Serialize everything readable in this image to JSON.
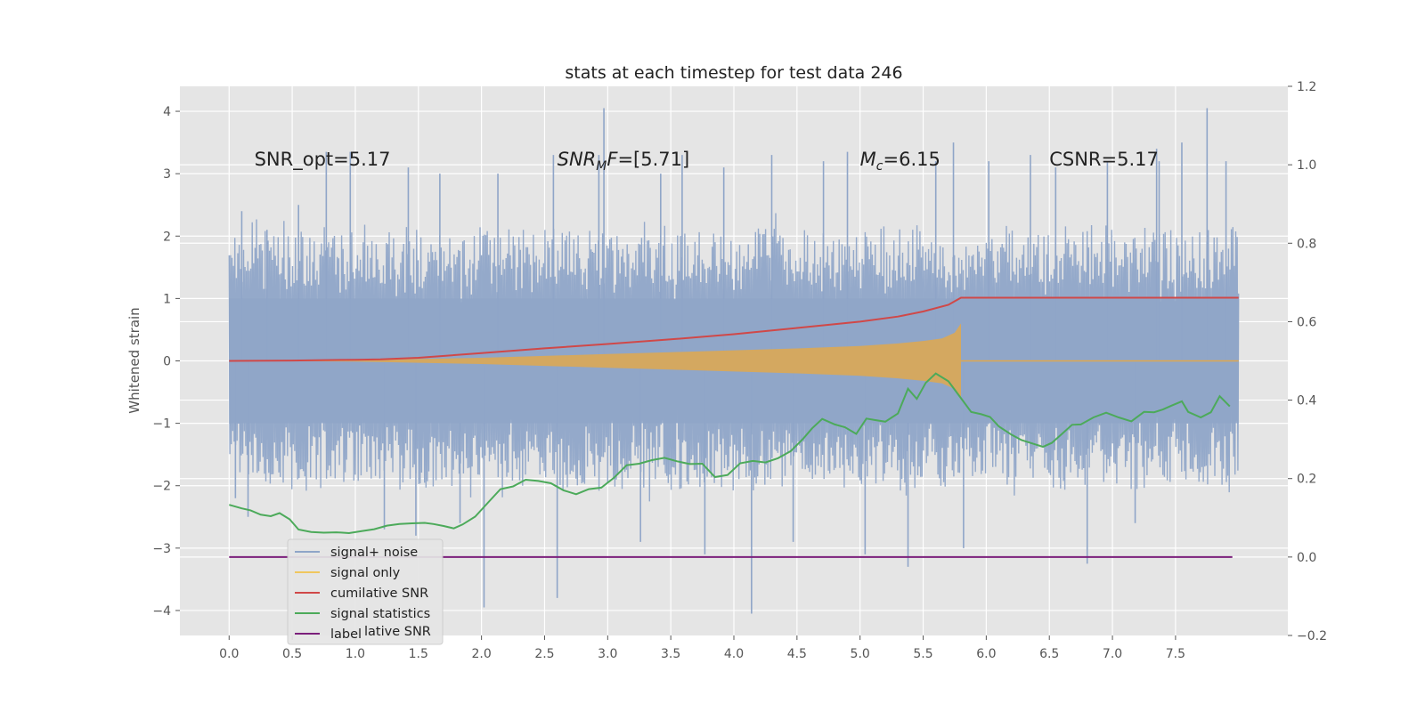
{
  "chart_data": {
    "type": "line",
    "title": "stats at each timestep for test data 246",
    "ylabel": "Whitened strain",
    "xlabel": "",
    "xlim": [
      -0.39,
      8.39
    ],
    "ylim": [
      -4.4,
      4.4
    ],
    "y2lim": [
      -0.2,
      1.2
    ],
    "grid": true,
    "xticks": [
      0.0,
      0.5,
      1.0,
      1.5,
      2.0,
      2.5,
      3.0,
      3.5,
      4.0,
      4.5,
      5.0,
      5.5,
      6.0,
      6.5,
      7.0,
      7.5
    ],
    "xtick_labels": [
      "0.0",
      "0.5",
      "1.0",
      "1.5",
      "2.0",
      "2.5",
      "3.0",
      "3.5",
      "4.0",
      "4.5",
      "5.0",
      "5.5",
      "6.0",
      "6.5",
      "7.0",
      "7.5"
    ],
    "yticks": [
      4,
      3,
      2,
      1,
      0,
      -1,
      -2,
      -3,
      -4
    ],
    "ytick_labels": [
      "4",
      "3",
      "2",
      "1",
      "0",
      "−1",
      "−2",
      "−3",
      "−4"
    ],
    "y2ticks": [
      1.2,
      1.0,
      0.8,
      0.6,
      0.4,
      0.2,
      0.0,
      -0.2
    ],
    "y2tick_labels": [
      "1.2",
      "1.0",
      "0.8",
      "0.6",
      "0.4",
      "0.2",
      "0.0",
      "−0.2"
    ],
    "annotations": [
      {
        "x": 0.2,
        "y": 3.2,
        "text": "SNR_opt=5.17",
        "italic": false
      },
      {
        "x": 2.6,
        "y": 3.2,
        "text": "SNR_MF=[5.71]",
        "italic": true
      },
      {
        "x": 5.0,
        "y": 3.2,
        "text": "M_c=6.15",
        "italic": true
      },
      {
        "x": 6.5,
        "y": 3.2,
        "text": "CSNR=5.17",
        "italic": false
      }
    ],
    "legend": {
      "placement": "lower-left",
      "entries": [
        {
          "label": "signal+ noise",
          "color": "#8fa5c8"
        },
        {
          "label": "signal only",
          "color": "#f0c75e"
        },
        {
          "label": "cumilative SNR",
          "color": "#d04848"
        },
        {
          "label": "signal statistics",
          "color": "#4caa5a"
        },
        {
          "label": "label",
          "color": "#7b1f7b"
        }
      ],
      "ghost_text": "lative SNR"
    },
    "series": [
      {
        "name": "signal+ noise",
        "axis": "left",
        "color": "#8fa5c8",
        "style": "dense-noise",
        "x_range": [
          0.0,
          8.0
        ],
        "typical_band": [
          -1.9,
          2.2
        ],
        "peaks_x": [
          0.05,
          0.1,
          0.15,
          0.3,
          0.55,
          0.77,
          0.96,
          1.23,
          1.42,
          1.48,
          1.67,
          1.83,
          2.02,
          2.13,
          2.57,
          2.6,
          2.93,
          2.97,
          3.26,
          3.42,
          3.59,
          3.77,
          3.92,
          4.14,
          4.3,
          4.47,
          4.71,
          4.9,
          5.04,
          5.38,
          5.6,
          5.74,
          5.82,
          6.02,
          6.35,
          6.55,
          6.8,
          6.96,
          7.18,
          7.35,
          7.37,
          7.55,
          7.75,
          7.9
        ],
        "peaks_y": [
          -2.2,
          2.4,
          -2.5,
          2.1,
          2.5,
          3.35,
          3.35,
          -2.7,
          3.1,
          -2.8,
          3.0,
          -2.6,
          -3.95,
          3.0,
          3.3,
          -3.8,
          3.3,
          4.05,
          -2.9,
          3.0,
          3.3,
          -3.1,
          3.1,
          -4.05,
          3.3,
          -2.9,
          3.2,
          3.35,
          -3.1,
          -3.3,
          3.2,
          3.5,
          -3.0,
          3.2,
          3.3,
          3.1,
          -3.25,
          3.2,
          -2.6,
          3.4,
          3.2,
          3.5,
          4.05,
          3.2
        ]
      },
      {
        "name": "signal only",
        "axis": "left",
        "color": "#e0a84e",
        "style": "chirp",
        "x": [
          0.0,
          1.0,
          2.0,
          3.0,
          3.5,
          4.0,
          4.5,
          5.0,
          5.3,
          5.5,
          5.65,
          5.75,
          5.8
        ],
        "envelope": [
          0.0,
          0.01,
          0.05,
          0.11,
          0.14,
          0.17,
          0.2,
          0.24,
          0.28,
          0.32,
          0.36,
          0.45,
          0.6
        ],
        "post_merger_x_range": [
          5.8,
          8.0
        ]
      },
      {
        "name": "cumilative SNR",
        "axis": "right",
        "color": "#d04848",
        "x": [
          0.0,
          0.5,
          1.0,
          1.2,
          1.5,
          2.0,
          2.5,
          3.0,
          3.5,
          4.0,
          4.5,
          5.0,
          5.3,
          5.5,
          5.7,
          5.75,
          5.8,
          6.0,
          7.0,
          8.0
        ],
        "y": [
          0.5,
          0.501,
          0.503,
          0.504,
          0.508,
          0.52,
          0.532,
          0.543,
          0.555,
          0.568,
          0.584,
          0.6,
          0.613,
          0.626,
          0.643,
          0.652,
          0.661,
          0.661,
          0.661,
          0.661
        ]
      },
      {
        "name": "signal statistics",
        "axis": "right",
        "color": "#4caa5a",
        "x": [
          0.0,
          0.1,
          0.17,
          0.25,
          0.33,
          0.4,
          0.48,
          0.55,
          0.65,
          0.75,
          0.85,
          0.95,
          1.05,
          1.15,
          1.25,
          1.35,
          1.45,
          1.55,
          1.62,
          1.7,
          1.78,
          1.85,
          1.95,
          2.05,
          2.15,
          2.25,
          2.35,
          2.45,
          2.55,
          2.65,
          2.75,
          2.85,
          2.95,
          3.05,
          3.15,
          3.25,
          3.35,
          3.45,
          3.55,
          3.65,
          3.75,
          3.85,
          3.95,
          4.05,
          4.15,
          4.25,
          4.35,
          4.45,
          4.55,
          4.62,
          4.7,
          4.8,
          4.88,
          4.97,
          5.05,
          5.12,
          5.2,
          5.3,
          5.38,
          5.45,
          5.52,
          5.6,
          5.7,
          5.8,
          5.88,
          5.96,
          6.03,
          6.1,
          6.2,
          6.28,
          6.38,
          6.45,
          6.52,
          6.6,
          6.68,
          6.75,
          6.85,
          6.95,
          7.05,
          7.15,
          7.25,
          7.33,
          7.4,
          7.47,
          7.55,
          7.6,
          7.7,
          7.78,
          7.85,
          7.93
        ],
        "y": [
          0.133,
          0.124,
          0.119,
          0.108,
          0.104,
          0.112,
          0.096,
          0.07,
          0.064,
          0.062,
          0.063,
          0.061,
          0.066,
          0.071,
          0.08,
          0.084,
          0.086,
          0.087,
          0.084,
          0.079,
          0.073,
          0.083,
          0.103,
          0.138,
          0.173,
          0.18,
          0.197,
          0.194,
          0.188,
          0.17,
          0.16,
          0.173,
          0.177,
          0.202,
          0.234,
          0.238,
          0.247,
          0.253,
          0.244,
          0.237,
          0.238,
          0.204,
          0.209,
          0.239,
          0.245,
          0.241,
          0.252,
          0.27,
          0.302,
          0.328,
          0.352,
          0.338,
          0.331,
          0.314,
          0.353,
          0.349,
          0.345,
          0.366,
          0.429,
          0.403,
          0.444,
          0.468,
          0.448,
          0.405,
          0.37,
          0.364,
          0.357,
          0.333,
          0.312,
          0.298,
          0.288,
          0.281,
          0.291,
          0.314,
          0.337,
          0.338,
          0.356,
          0.368,
          0.356,
          0.346,
          0.37,
          0.369,
          0.376,
          0.386,
          0.397,
          0.37,
          0.356,
          0.369,
          0.41,
          0.384
        ]
      },
      {
        "name": "label",
        "axis": "right",
        "color": "#7b1f7b",
        "x": [
          0.0,
          7.95
        ],
        "y": [
          0.0,
          0.0
        ]
      }
    ]
  }
}
